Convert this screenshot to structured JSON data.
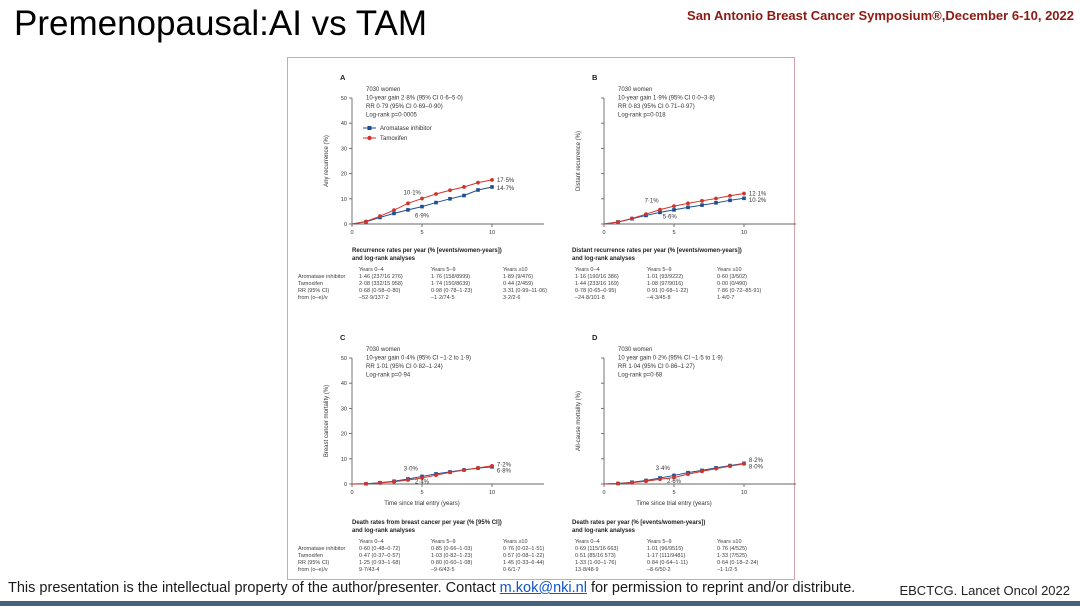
{
  "slide": {
    "title": "Premenopausal:AI vs TAM",
    "symposium": "San Antonio Breast Cancer Symposium®,December 6-10, 2022",
    "footer_text_before_link": "This presentation is the intellectual property of the author/presenter. Contact ",
    "footer_link": "m.kok@nki.nl",
    "footer_text_after_link": " for permission to reprint and/or distribute.",
    "citation": "EBCTCG. Lancet Oncol 2022",
    "colors": {
      "accent_red": "#8e1a12",
      "ai_blue": "#1d4f91",
      "tam_red": "#d0352c",
      "figure_border": "#d6a3ad",
      "footer_bar": "#46627f",
      "link_blue": "#1155cc"
    }
  },
  "chart_data": [
    {
      "type": "line",
      "panel": "A",
      "stats": [
        "7030 women",
        "10-year gain 2·8% (95% CI 0·6–5·0)",
        "RR 0·79 (95% CI 0·69–0·90)",
        "Log-rank p=0·0005"
      ],
      "ylabel": "Any recurrence (%)",
      "xlabel": "",
      "ylim": [
        0,
        50
      ],
      "yticks": [
        0,
        10,
        20,
        30,
        40,
        50
      ],
      "ytick_labels_visible": true,
      "xticks": [
        0,
        5,
        10
      ],
      "x": [
        0,
        1,
        2,
        3,
        4,
        5,
        6,
        7,
        8,
        9,
        10
      ],
      "series": [
        {
          "name": "Aromatase inhibitor",
          "marker": "square",
          "color_key": "ai_blue",
          "values": [
            0,
            0.9,
            2.6,
            4.2,
            5.6,
            6.9,
            8.5,
            10.0,
            11.3,
            13.5,
            14.7
          ]
        },
        {
          "name": "Tamoxifen",
          "marker": "circle",
          "color_key": "tam_red",
          "values": [
            0,
            1.0,
            3.1,
            5.5,
            8.2,
            10.1,
            11.9,
            13.4,
            14.7,
            16.4,
            17.5
          ]
        }
      ],
      "show_legend": true,
      "annotations": [
        {
          "text": "10·1%",
          "x": 4.3,
          "y": 11.8,
          "anchor": "middle"
        },
        {
          "text": "6·9%",
          "x": 5.0,
          "y": 2.5,
          "anchor": "middle"
        },
        {
          "text": "17·5%",
          "x": 10.35,
          "y": 16.7,
          "anchor": "start"
        },
        {
          "text": "14·7%",
          "x": 10.35,
          "y": 13.5,
          "anchor": "start"
        }
      ],
      "caption": [
        "Recurrence rates per year (% [events/women-years])",
        "and log-rank analyses"
      ],
      "table": {
        "row_labels_visible": true,
        "headers": [
          "Years 0–4",
          "Years 5–9",
          "Years ≥10"
        ],
        "row_labels": [
          "Aromatase inhibitor",
          "Tamoxifen",
          "RR (95% CI)",
          "from (o–e)/v"
        ],
        "rows": [
          [
            "1·46 (237/16 276)",
            "1·76 (158/8999)",
            "1·89 (9/476)"
          ],
          [
            "2·08 (332/15 958)",
            "1·74 (150/8639)",
            "0·44 (2/459)"
          ],
          [
            "0·68 (0·58–0·80)",
            "0·98 (0·78–1·23)",
            "3·31 (0·99–11·06)"
          ],
          [
            "–52·9/137·2",
            "–1·2/74·5",
            "3·2/2·6"
          ]
        ]
      }
    },
    {
      "type": "line",
      "panel": "B",
      "stats": [
        "7030 women",
        "10-year gain 1·9% (95% CI 0·0–3·8)",
        "RR 0·83 (95% CI 0·71–0·97)",
        "Log-rank p=0·018"
      ],
      "ylabel": "Distant recurrence (%)",
      "xlabel": "",
      "ylim": [
        0,
        50
      ],
      "yticks": [
        0,
        10,
        20,
        30,
        40,
        50
      ],
      "ytick_labels_visible": false,
      "xticks": [
        0,
        5,
        10
      ],
      "x": [
        0,
        1,
        2,
        3,
        4,
        5,
        6,
        7,
        8,
        9,
        10
      ],
      "series": [
        {
          "name": "Aromatase inhibitor",
          "marker": "square",
          "color_key": "ai_blue",
          "values": [
            0,
            0.8,
            2.1,
            3.4,
            4.6,
            5.6,
            6.6,
            7.5,
            8.4,
            9.4,
            10.2
          ]
        },
        {
          "name": "Tamoxifen",
          "marker": "circle",
          "color_key": "tam_red",
          "values": [
            0,
            0.8,
            2.2,
            3.9,
            5.7,
            7.1,
            8.2,
            9.2,
            10.1,
            11.2,
            12.1
          ]
        }
      ],
      "show_legend": false,
      "annotations": [
        {
          "text": "7·1%",
          "x": 3.4,
          "y": 8.5,
          "anchor": "middle"
        },
        {
          "text": "5·6%",
          "x": 4.7,
          "y": 2.2,
          "anchor": "middle"
        },
        {
          "text": "12·1%",
          "x": 10.35,
          "y": 11.4,
          "anchor": "start"
        },
        {
          "text": "10·2%",
          "x": 10.35,
          "y": 8.8,
          "anchor": "start"
        }
      ],
      "caption": [
        "Distant recurrence rates per year (% [events/women-years])",
        "and log-rank analyses"
      ],
      "table": {
        "row_labels_visible": false,
        "headers": [
          "Years 0–4",
          "Years 5–9",
          "Years ≥10"
        ],
        "row_labels": [],
        "rows": [
          [
            "1·16 (190/16 386)",
            "1·01 (93/9222)",
            "0·60 (3/502)"
          ],
          [
            "1·44 (233/16 169)",
            "1·08 (97/9016)",
            "0·00 (0/490)"
          ],
          [
            "0·78 (0·65–0·95)",
            "0·91 (0·68–1·22)",
            "7·86 (0·72–85·91)"
          ],
          [
            "–24·8/101·8",
            "–4·3/45·8",
            "1·4/0·7"
          ]
        ]
      }
    },
    {
      "type": "line",
      "panel": "C",
      "stats": [
        "7030 women",
        "10-year gain 0·4% (95% CI –1·2 to 1·9)",
        "RR 1·01 (95% CI 0·82–1·24)",
        "Log-rank p=0·94"
      ],
      "ylabel": "Breast cancer mortality (%)",
      "xlabel": "Time since trial entry (years)",
      "ylim": [
        0,
        50
      ],
      "yticks": [
        0,
        10,
        20,
        30,
        40,
        50
      ],
      "ytick_labels_visible": true,
      "xticks": [
        0,
        5,
        10
      ],
      "x": [
        0,
        1,
        2,
        3,
        4,
        5,
        6,
        7,
        8,
        9,
        10
      ],
      "series": [
        {
          "name": "Aromatase inhibitor",
          "marker": "square",
          "color_key": "ai_blue",
          "values": [
            0,
            0.1,
            0.5,
            1.1,
            2.0,
            3.0,
            4.0,
            4.8,
            5.6,
            6.3,
            6.8
          ]
        },
        {
          "name": "Tamoxifen",
          "marker": "circle",
          "color_key": "tam_red",
          "values": [
            0,
            0.1,
            0.4,
            0.9,
            1.6,
            2.4,
            3.5,
            4.6,
            5.5,
            6.4,
            7.2
          ]
        }
      ],
      "show_legend": false,
      "annotations": [
        {
          "text": "3·0%",
          "x": 4.2,
          "y": 5.4,
          "anchor": "middle"
        },
        {
          "text": "2·4%",
          "x": 5.0,
          "y": 0.2,
          "anchor": "middle"
        },
        {
          "text": "7·2%",
          "x": 10.35,
          "y": 7.0,
          "anchor": "start"
        },
        {
          "text": "6·8%",
          "x": 10.35,
          "y": 4.6,
          "anchor": "start"
        }
      ],
      "caption": [
        "Death rates from breast cancer per year (% [95% CI])",
        "and log-rank analyses"
      ],
      "table": {
        "row_labels_visible": true,
        "headers": [
          "Years 0–4",
          "Years 5–9",
          "Years ≥10"
        ],
        "row_labels": [
          "Aromatase inhibitor",
          "Tamoxifen",
          "RR (95% CI)",
          "from (o–e)/v"
        ],
        "rows": [
          [
            "0·60 (0·48–0·72)",
            "0·85 (0·66–1·03)",
            "0·76 (0·02–1·51)"
          ],
          [
            "0·47 (0·37–0·57)",
            "1·03 (0·82–1·23)",
            "0·57 (0·08–1·22)"
          ],
          [
            "1·25 (0·93–1·68)",
            "0·80 (0·60–1·08)",
            "1·45 (0·33–6·44)"
          ],
          [
            "9·7/43·4",
            "–9·6/43·5",
            "0·6/1·7"
          ]
        ]
      }
    },
    {
      "type": "line",
      "panel": "D",
      "stats": [
        "7030 women",
        "10 year gain 0·2% (95% CI –1·5 to 1·9)",
        "RR 1·04 (95% CI 0·86–1·27)",
        "Log-rank p=0·68"
      ],
      "ylabel": "All-cause mortality (%)",
      "xlabel": "Time since trial entry (years)",
      "ylim": [
        0,
        50
      ],
      "yticks": [
        0,
        10,
        20,
        30,
        40,
        50
      ],
      "ytick_labels_visible": false,
      "xticks": [
        0,
        5,
        10
      ],
      "x": [
        0,
        1,
        2,
        3,
        4,
        5,
        6,
        7,
        8,
        9,
        10
      ],
      "series": [
        {
          "name": "Aromatase inhibitor",
          "marker": "square",
          "color_key": "ai_blue",
          "values": [
            0,
            0.2,
            0.7,
            1.4,
            2.4,
            3.4,
            4.5,
            5.4,
            6.4,
            7.3,
            8.2
          ]
        },
        {
          "name": "Tamoxifen",
          "marker": "circle",
          "color_key": "tam_red",
          "values": [
            0,
            0.2,
            0.5,
            1.1,
            1.9,
            2.6,
            3.9,
            5.0,
            6.1,
            7.1,
            8.0
          ]
        }
      ],
      "show_legend": false,
      "annotations": [
        {
          "text": "3·4%",
          "x": 4.2,
          "y": 5.6,
          "anchor": "middle"
        },
        {
          "text": "2·6%",
          "x": 5.0,
          "y": 0.4,
          "anchor": "middle"
        },
        {
          "text": "8·2%",
          "x": 10.35,
          "y": 8.8,
          "anchor": "start"
        },
        {
          "text": "8·0%",
          "x": 10.35,
          "y": 6.2,
          "anchor": "start"
        }
      ],
      "caption": [
        "Death rates per year (% [events/women-years])",
        "and log-rank analyses"
      ],
      "table": {
        "row_labels_visible": false,
        "headers": [
          "Years 0–4",
          "Years 5–9",
          "Years ≥10"
        ],
        "row_labels": [],
        "rows": [
          [
            "0·69 (115/16 663)",
            "1·01 (96/9515)",
            "0·76 (4/525)"
          ],
          [
            "0·51 (85/16 573)",
            "1·17 (111/9481)",
            "1·33 (7/525)"
          ],
          [
            "1·33 (1·00–1·76)",
            "0·84 (0·64–1·11)",
            "0·64 (0·18–2·24)"
          ],
          [
            "13·8/48·9",
            "–8·6/50·2",
            "–1·1/2·5"
          ]
        ]
      }
    }
  ]
}
